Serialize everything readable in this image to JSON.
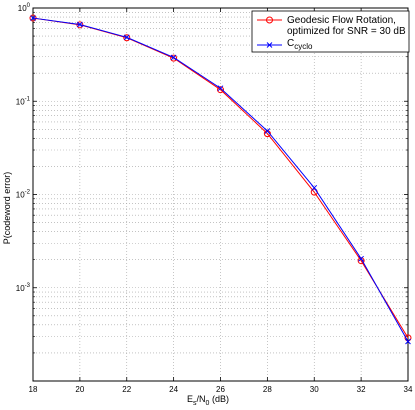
{
  "chart_data": {
    "type": "line",
    "xlabel": {
      "main": "E",
      "sub1": "s",
      "mid": "/N",
      "sub2": "0",
      "tail": " (dB)"
    },
    "ylabel": "P(codeword error)",
    "xlim": [
      18,
      34
    ],
    "ylim": [
      0.0001,
      1
    ],
    "yscale": "log",
    "grid": true,
    "legend_position": "top-right",
    "x_ticks": [
      18,
      20,
      22,
      24,
      26,
      28,
      30,
      32,
      34
    ],
    "x_tick_labels": [
      "18",
      "20",
      "22",
      "24",
      "26",
      "28",
      "30",
      "32",
      "34"
    ],
    "y_ticks": [
      {
        "value": 1,
        "base": "10",
        "exp": "0"
      },
      {
        "value": 0.1,
        "base": "10",
        "exp": "-1"
      },
      {
        "value": 0.01,
        "base": "10",
        "exp": "-2"
      },
      {
        "value": 0.001,
        "base": "10",
        "exp": "-3"
      }
    ],
    "x": [
      18,
      20,
      22,
      24,
      26,
      28,
      30,
      32,
      34
    ],
    "series": [
      {
        "name": "Geodesic Flow Rotation, optimized for SNR = 30 dB",
        "legend_lines": [
          "Geodesic Flow Rotation,",
          "optimized for SNR = 30 dB"
        ],
        "color": "#ff0000",
        "marker": "circle",
        "values": [
          0.78,
          0.66,
          0.48,
          0.29,
          0.133,
          0.045,
          0.0106,
          0.00195,
          0.00029
        ]
      },
      {
        "name": "Ccyclo",
        "legend_main": "C",
        "legend_sub": "cyclo",
        "color": "#0000ff",
        "marker": "x",
        "values": [
          0.78,
          0.665,
          0.485,
          0.295,
          0.138,
          0.048,
          0.0118,
          0.00205,
          0.000265
        ]
      }
    ]
  }
}
